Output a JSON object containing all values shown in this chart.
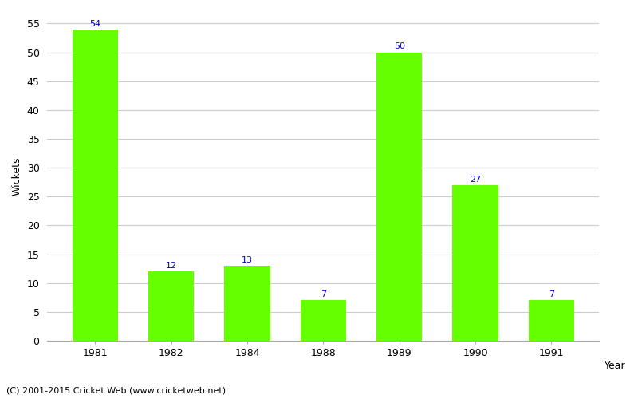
{
  "years": [
    "1981",
    "1982",
    "1984",
    "1988",
    "1989",
    "1990",
    "1991"
  ],
  "wickets": [
    54,
    12,
    13,
    7,
    50,
    27,
    7
  ],
  "bar_color": "#66ff00",
  "bar_edge_color": "#66ff00",
  "label_color": "#0000cc",
  "ylabel": "Wickets",
  "xlabel_right": "Year",
  "ylim": [
    0,
    57
  ],
  "yticks": [
    0,
    5,
    10,
    15,
    20,
    25,
    30,
    35,
    40,
    45,
    50,
    55
  ],
  "grid_color": "#cccccc",
  "bg_color": "#ffffff",
  "footer": "(C) 2001-2015 Cricket Web (www.cricketweb.net)",
  "label_fontsize": 8,
  "axis_fontsize": 9,
  "footer_fontsize": 8
}
